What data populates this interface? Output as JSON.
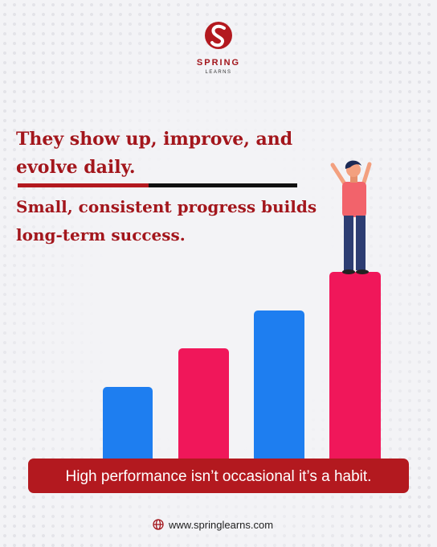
{
  "brand": {
    "name": "SPRING",
    "tagline": "LEARNS"
  },
  "heading": {
    "lines": [
      "They show up, improve, and",
      "evolve daily."
    ]
  },
  "subheading": {
    "lines": [
      "Small, consistent progress builds",
      "long-term success."
    ]
  },
  "banner": {
    "text": "High performance isn’t occasional it’s a habit."
  },
  "footer": {
    "website": "www.springlearns.com"
  }
}
